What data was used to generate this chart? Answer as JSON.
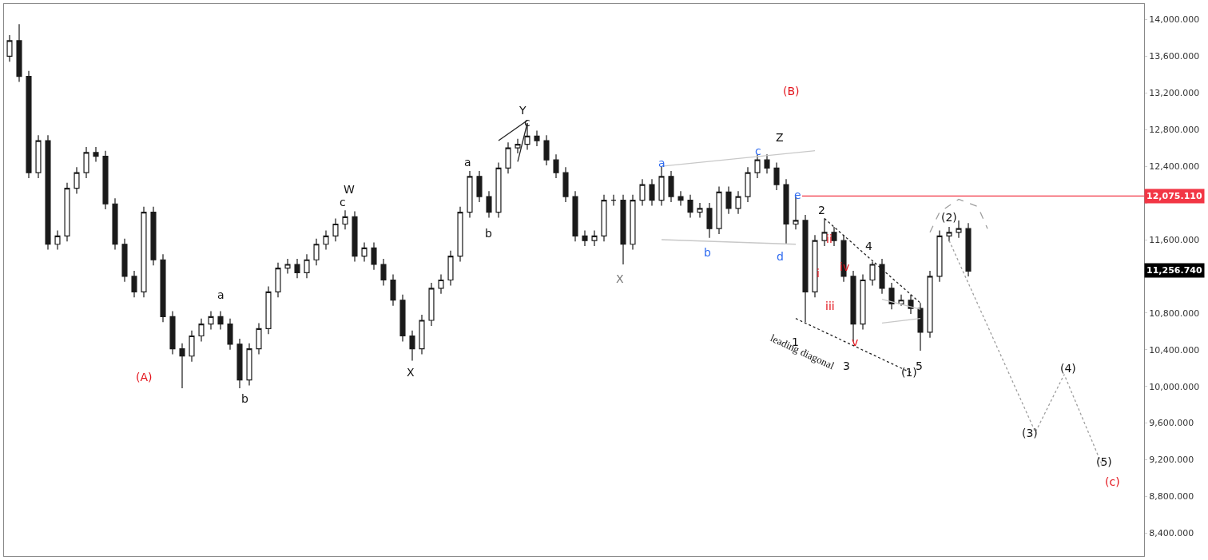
{
  "chart_data": {
    "type": "candlestick",
    "color": "#1a1a1a",
    "categories": [
      null,
      null,
      null,
      null,
      null,
      null,
      null,
      null,
      null,
      null,
      null,
      null,
      null,
      null,
      null,
      null,
      null,
      null,
      null,
      null,
      null,
      null,
      null,
      null,
      null,
      null,
      null,
      null,
      null,
      null,
      null,
      null,
      null,
      null,
      null,
      null,
      null,
      null,
      null,
      null,
      null,
      null,
      null,
      null,
      null,
      null,
      null,
      null,
      null,
      null,
      null,
      null,
      null,
      null,
      null,
      null,
      null,
      null,
      null,
      null,
      null,
      null,
      null,
      null,
      null,
      null,
      null,
      null,
      null,
      null,
      null,
      null,
      null,
      null,
      null,
      null,
      null,
      null,
      null,
      null,
      null,
      null,
      null,
      null,
      null,
      null,
      null,
      null,
      null,
      null,
      null,
      null,
      null,
      null,
      null,
      null,
      null,
      null,
      null,
      null,
      null,
      null,
      null,
      null,
      null,
      null,
      null,
      null,
      null,
      null,
      null,
      null,
      null,
      null,
      null,
      null,
      null,
      null,
      null,
      null
    ],
    "ohlc": [
      [
        13600,
        13830,
        13540,
        13770
      ],
      [
        13770,
        13950,
        13320,
        13380
      ],
      [
        13380,
        13440,
        12270,
        12330
      ],
      [
        12330,
        12740,
        12270,
        12680
      ],
      [
        12680,
        12740,
        11490,
        11550
      ],
      [
        11550,
        11700,
        11490,
        11640
      ],
      [
        11640,
        12220,
        11580,
        12160
      ],
      [
        12160,
        12390,
        12100,
        12330
      ],
      [
        12330,
        12610,
        12270,
        12550
      ],
      [
        12550,
        12610,
        12450,
        12510
      ],
      [
        12510,
        12570,
        11930,
        11990
      ],
      [
        11990,
        12050,
        11490,
        11550
      ],
      [
        11550,
        11610,
        11140,
        11200
      ],
      [
        11200,
        11260,
        10970,
        11030
      ],
      [
        11030,
        11960,
        10970,
        11900
      ],
      [
        11900,
        11960,
        11320,
        11380
      ],
      [
        11380,
        11440,
        10700,
        10760
      ],
      [
        10760,
        10820,
        10350,
        10410
      ],
      [
        10410,
        10470,
        9980,
        10330
      ],
      [
        10330,
        10610,
        10270,
        10550
      ],
      [
        10550,
        10740,
        10490,
        10680
      ],
      [
        10680,
        10820,
        10620,
        10760
      ],
      [
        10760,
        10820,
        10620,
        10680
      ],
      [
        10680,
        10740,
        10400,
        10460
      ],
      [
        10460,
        10520,
        9980,
        10070
      ],
      [
        10070,
        10470,
        10010,
        10410
      ],
      [
        10410,
        10690,
        10350,
        10630
      ],
      [
        10630,
        11090,
        10570,
        11030
      ],
      [
        11030,
        11350,
        10970,
        11290
      ],
      [
        11290,
        11390,
        11230,
        11330
      ],
      [
        11330,
        11390,
        11180,
        11240
      ],
      [
        11240,
        11440,
        11180,
        11380
      ],
      [
        11380,
        11610,
        11320,
        11550
      ],
      [
        11550,
        11700,
        11490,
        11640
      ],
      [
        11640,
        11830,
        11580,
        11770
      ],
      [
        11770,
        11920,
        11710,
        11850
      ],
      [
        11850,
        11910,
        11360,
        11420
      ],
      [
        11420,
        11570,
        11360,
        11510
      ],
      [
        11510,
        11570,
        11270,
        11330
      ],
      [
        11330,
        11390,
        11100,
        11160
      ],
      [
        11160,
        11220,
        10880,
        10940
      ],
      [
        10940,
        11000,
        10490,
        10550
      ],
      [
        10550,
        10610,
        10280,
        10410
      ],
      [
        10410,
        10780,
        10350,
        10720
      ],
      [
        10720,
        11130,
        10660,
        11070
      ],
      [
        11070,
        11220,
        11010,
        11160
      ],
      [
        11160,
        11480,
        11100,
        11420
      ],
      [
        11420,
        11960,
        11360,
        11900
      ],
      [
        11900,
        12350,
        11840,
        12290
      ],
      [
        12290,
        12350,
        12010,
        12070
      ],
      [
        12070,
        12130,
        11840,
        11900
      ],
      [
        11900,
        12440,
        11840,
        12380
      ],
      [
        12380,
        12660,
        12320,
        12600
      ],
      [
        12600,
        12700,
        12540,
        12640
      ],
      [
        12640,
        12870,
        12580,
        12730
      ],
      [
        12730,
        12790,
        12620,
        12680
      ],
      [
        12680,
        12740,
        12410,
        12470
      ],
      [
        12470,
        12530,
        12270,
        12330
      ],
      [
        12330,
        12390,
        12010,
        12070
      ],
      [
        12070,
        12130,
        11580,
        11640
      ],
      [
        11640,
        11700,
        11530,
        11590
      ],
      [
        11590,
        11700,
        11530,
        11640
      ],
      [
        11640,
        12090,
        11580,
        12030
      ],
      [
        12030,
        12090,
        11970,
        12030
      ],
      [
        12030,
        12090,
        11330,
        11550
      ],
      [
        11550,
        12090,
        11490,
        12030
      ],
      [
        12030,
        12260,
        11970,
        12200
      ],
      [
        12200,
        12260,
        11970,
        12030
      ],
      [
        12030,
        12400,
        11970,
        12290
      ],
      [
        12290,
        12350,
        12010,
        12070
      ],
      [
        12070,
        12130,
        11970,
        12030
      ],
      [
        12030,
        12090,
        11840,
        11900
      ],
      [
        11900,
        12000,
        11840,
        11940
      ],
      [
        11940,
        12000,
        11620,
        11720
      ],
      [
        11720,
        12180,
        11660,
        12120
      ],
      [
        12120,
        12180,
        11880,
        11940
      ],
      [
        11940,
        12130,
        11880,
        12070
      ],
      [
        12070,
        12390,
        12010,
        12330
      ],
      [
        12330,
        12530,
        12270,
        12470
      ],
      [
        12470,
        12530,
        12320,
        12380
      ],
      [
        12380,
        12440,
        12140,
        12200
      ],
      [
        12200,
        12260,
        11550,
        11770
      ],
      [
        11770,
        12070,
        11710,
        11810
      ],
      [
        11810,
        11870,
        10700,
        11030
      ],
      [
        11030,
        11650,
        10970,
        11590
      ],
      [
        11590,
        11830,
        11530,
        11680
      ],
      [
        11680,
        11740,
        11530,
        11590
      ],
      [
        11590,
        11650,
        11140,
        11200
      ],
      [
        11200,
        11260,
        10490,
        10680
      ],
      [
        10680,
        11220,
        10620,
        11160
      ],
      [
        11160,
        11360,
        11100,
        11330
      ],
      [
        11330,
        11390,
        11010,
        11070
      ],
      [
        11070,
        11130,
        10840,
        10900
      ],
      [
        10900,
        11000,
        10880,
        10940
      ],
      [
        10940,
        11000,
        10790,
        10850
      ],
      [
        10850,
        10910,
        10390,
        10590
      ],
      [
        10590,
        11260,
        10530,
        11200
      ],
      [
        11200,
        11700,
        11140,
        11640
      ],
      [
        11640,
        11740,
        11580,
        11680
      ],
      [
        11680,
        11810,
        11620,
        11720
      ],
      [
        11720,
        11780,
        11200,
        11256.74
      ],
      null,
      null,
      null,
      null,
      null,
      null,
      null,
      null,
      null,
      null,
      null,
      null,
      null,
      null,
      null,
      null,
      null,
      null,
      null
    ],
    "series": [
      {
        "type": "line",
        "color": "#9e9e9e",
        "line_style": "dotted",
        "values": [
          null,
          null,
          null,
          null,
          null,
          null,
          null,
          null,
          null,
          null,
          null,
          null,
          null,
          null,
          null,
          null,
          null,
          null,
          null,
          null,
          null,
          null,
          null,
          null,
          null,
          null,
          null,
          null,
          null,
          null,
          null,
          null,
          null,
          null,
          null,
          null,
          null,
          null,
          null,
          null,
          null,
          null,
          null,
          null,
          null,
          null,
          null,
          null,
          null,
          null,
          null,
          null,
          null,
          null,
          null,
          null,
          null,
          null,
          null,
          null,
          null,
          null,
          null,
          null,
          null,
          null,
          null,
          null,
          null,
          null,
          null,
          null,
          null,
          null,
          null,
          null,
          null,
          null,
          null,
          null,
          null,
          null,
          null,
          null,
          null,
          null,
          null,
          null,
          null,
          null,
          null,
          null,
          null,
          null,
          null,
          null,
          null,
          null,
          11590,
          null,
          null,
          null,
          null,
          null,
          null,
          null,
          null,
          9500,
          null,
          null,
          10130,
          null,
          null,
          null,
          9130,
          null,
          null,
          null,
          null,
          null
        ]
      },
      {
        "type": "line",
        "color": "#c8c8c8",
        "line_style": "solid",
        "values": [
          null,
          null,
          null,
          null,
          null,
          null,
          null,
          null,
          null,
          null,
          null,
          null,
          null,
          null,
          null,
          null,
          null,
          null,
          null,
          null,
          null,
          null,
          null,
          null,
          null,
          null,
          null,
          null,
          null,
          null,
          null,
          null,
          null,
          null,
          null,
          null,
          null,
          null,
          null,
          null,
          null,
          null,
          null,
          null,
          null,
          null,
          null,
          null,
          null,
          null,
          null,
          null,
          null,
          null,
          null,
          null,
          null,
          null,
          null,
          null,
          null,
          null,
          null,
          null,
          null,
          null,
          null,
          null,
          12400,
          null,
          null,
          null,
          null,
          null,
          null,
          null,
          null,
          null,
          null,
          null,
          null,
          null,
          null,
          null,
          12570,
          null,
          null,
          null,
          null,
          null,
          null,
          null,
          null,
          null,
          null,
          null,
          null,
          null,
          null,
          null,
          null,
          null,
          null,
          null,
          null,
          null,
          null,
          null,
          null,
          null,
          null,
          null,
          null,
          null,
          null,
          null,
          null,
          null,
          null,
          null
        ]
      },
      {
        "type": "line",
        "color": "#c8c8c8",
        "line_style": "solid",
        "values": [
          null,
          null,
          null,
          null,
          null,
          null,
          null,
          null,
          null,
          null,
          null,
          null,
          null,
          null,
          null,
          null,
          null,
          null,
          null,
          null,
          null,
          null,
          null,
          null,
          null,
          null,
          null,
          null,
          null,
          null,
          null,
          null,
          null,
          null,
          null,
          null,
          null,
          null,
          null,
          null,
          null,
          null,
          null,
          null,
          null,
          null,
          null,
          null,
          null,
          null,
          null,
          null,
          null,
          null,
          null,
          null,
          null,
          null,
          null,
          null,
          null,
          null,
          null,
          null,
          null,
          null,
          null,
          null,
          11600,
          null,
          null,
          null,
          null,
          null,
          null,
          null,
          null,
          null,
          null,
          null,
          null,
          null,
          11550,
          null,
          null,
          null,
          null,
          null,
          null,
          null,
          null,
          null,
          null,
          null,
          null,
          null,
          null,
          null,
          null,
          null,
          null,
          null,
          null,
          null,
          null,
          null,
          null,
          null,
          null,
          null,
          null,
          null,
          null,
          null,
          null,
          null,
          null,
          null,
          null,
          null
        ]
      },
      {
        "type": "line",
        "color": "#222222",
        "line_style": "dotted",
        "values": [
          null,
          null,
          null,
          null,
          null,
          null,
          null,
          null,
          null,
          null,
          null,
          null,
          null,
          null,
          null,
          null,
          null,
          null,
          null,
          null,
          null,
          null,
          null,
          null,
          null,
          null,
          null,
          null,
          null,
          null,
          null,
          null,
          null,
          null,
          null,
          null,
          null,
          null,
          null,
          null,
          null,
          null,
          null,
          null,
          null,
          null,
          null,
          null,
          null,
          null,
          null,
          null,
          null,
          null,
          null,
          null,
          null,
          null,
          null,
          null,
          null,
          null,
          null,
          null,
          null,
          null,
          null,
          null,
          null,
          null,
          null,
          null,
          null,
          null,
          null,
          null,
          null,
          null,
          null,
          null,
          null,
          null,
          null,
          null,
          null,
          11830,
          null,
          null,
          null,
          null,
          null,
          null,
          null,
          null,
          null,
          10910,
          null,
          null,
          null,
          null,
          null,
          null,
          null,
          null,
          null,
          null,
          null,
          null,
          null,
          null,
          null,
          null,
          null,
          null,
          null,
          null,
          null,
          null,
          null,
          null
        ]
      },
      {
        "type": "line",
        "color": "#222222",
        "line_style": "dotted",
        "values": [
          null,
          null,
          null,
          null,
          null,
          null,
          null,
          null,
          null,
          null,
          null,
          null,
          null,
          null,
          null,
          null,
          null,
          null,
          null,
          null,
          null,
          null,
          null,
          null,
          null,
          null,
          null,
          null,
          null,
          null,
          null,
          null,
          null,
          null,
          null,
          null,
          null,
          null,
          null,
          null,
          null,
          null,
          null,
          null,
          null,
          null,
          null,
          null,
          null,
          null,
          null,
          null,
          null,
          null,
          null,
          null,
          null,
          null,
          null,
          null,
          null,
          null,
          null,
          null,
          null,
          null,
          null,
          null,
          null,
          null,
          null,
          null,
          null,
          null,
          null,
          null,
          null,
          null,
          null,
          null,
          null,
          null,
          10740,
          null,
          null,
          null,
          null,
          null,
          null,
          null,
          null,
          null,
          null,
          null,
          10150,
          null,
          null,
          null,
          null,
          null,
          null,
          null,
          null,
          null,
          null,
          null,
          null,
          null,
          null,
          null,
          null,
          null,
          null,
          null,
          null,
          null,
          null,
          null,
          null,
          null
        ]
      },
      {
        "type": "line",
        "color": "#222222",
        "line_style": "solid",
        "values": [
          null,
          null,
          null,
          null,
          null,
          null,
          null,
          null,
          null,
          null,
          null,
          null,
          null,
          null,
          null,
          null,
          null,
          null,
          null,
          null,
          null,
          null,
          null,
          null,
          null,
          null,
          null,
          null,
          null,
          null,
          null,
          null,
          null,
          null,
          null,
          null,
          null,
          null,
          null,
          null,
          null,
          null,
          null,
          null,
          null,
          null,
          null,
          null,
          null,
          null,
          null,
          12680,
          null,
          null,
          12900,
          null,
          null,
          null,
          null,
          null,
          null,
          null,
          null,
          null,
          null,
          null,
          null,
          null,
          null,
          null,
          null,
          null,
          null,
          null,
          null,
          null,
          null,
          null,
          null,
          null,
          null,
          null,
          null,
          null,
          null,
          null,
          null,
          null,
          null,
          null,
          null,
          null,
          null,
          null,
          null,
          null,
          null,
          null,
          null,
          null,
          null,
          null,
          null,
          null,
          null,
          null,
          null,
          null,
          null,
          null,
          null,
          null,
          null,
          null,
          null,
          null,
          null,
          null,
          null,
          null
        ]
      },
      {
        "type": "line",
        "color": "#222222",
        "line_style": "solid",
        "values": [
          null,
          null,
          null,
          null,
          null,
          null,
          null,
          null,
          null,
          null,
          null,
          null,
          null,
          null,
          null,
          null,
          null,
          null,
          null,
          null,
          null,
          null,
          null,
          null,
          null,
          null,
          null,
          null,
          null,
          null,
          null,
          null,
          null,
          null,
          null,
          null,
          null,
          null,
          null,
          null,
          null,
          null,
          null,
          null,
          null,
          null,
          null,
          null,
          null,
          null,
          null,
          null,
          null,
          12450,
          12870,
          null,
          null,
          null,
          null,
          null,
          null,
          null,
          null,
          null,
          null,
          null,
          null,
          null,
          null,
          null,
          null,
          null,
          null,
          null,
          null,
          null,
          null,
          null,
          null,
          null,
          null,
          null,
          null,
          null,
          null,
          null,
          null,
          null,
          null,
          null,
          null,
          null,
          null,
          null,
          null,
          null,
          null,
          null,
          null,
          null,
          null,
          null,
          null,
          null,
          null,
          null,
          null,
          null,
          null,
          null,
          null,
          null,
          null,
          null,
          null,
          null,
          null,
          null,
          null,
          null
        ]
      },
      {
        "type": "line",
        "color": "#c8c8c8",
        "line_style": "solid",
        "values": [
          null,
          null,
          null,
          null,
          null,
          null,
          null,
          null,
          null,
          null,
          null,
          null,
          null,
          null,
          null,
          null,
          null,
          null,
          null,
          null,
          null,
          null,
          null,
          null,
          null,
          null,
          null,
          null,
          null,
          null,
          null,
          null,
          null,
          null,
          null,
          null,
          null,
          null,
          null,
          null,
          null,
          null,
          null,
          null,
          null,
          null,
          null,
          null,
          null,
          null,
          null,
          null,
          null,
          null,
          null,
          null,
          null,
          null,
          null,
          null,
          null,
          null,
          null,
          null,
          null,
          null,
          null,
          null,
          null,
          null,
          null,
          null,
          null,
          null,
          null,
          null,
          null,
          null,
          null,
          null,
          null,
          null,
          null,
          null,
          null,
          null,
          null,
          null,
          null,
          null,
          null,
          10950,
          null,
          null,
          null,
          10840,
          null,
          null,
          null,
          null,
          null,
          null,
          null,
          null,
          null,
          null,
          null,
          null,
          null,
          null,
          null,
          null,
          null,
          null,
          null,
          null,
          null,
          null,
          null,
          null
        ]
      },
      {
        "type": "line",
        "color": "#c8c8c8",
        "line_style": "solid",
        "values": [
          null,
          null,
          null,
          null,
          null,
          null,
          null,
          null,
          null,
          null,
          null,
          null,
          null,
          null,
          null,
          null,
          null,
          null,
          null,
          null,
          null,
          null,
          null,
          null,
          null,
          null,
          null,
          null,
          null,
          null,
          null,
          null,
          null,
          null,
          null,
          null,
          null,
          null,
          null,
          null,
          null,
          null,
          null,
          null,
          null,
          null,
          null,
          null,
          null,
          null,
          null,
          null,
          null,
          null,
          null,
          null,
          null,
          null,
          null,
          null,
          null,
          null,
          null,
          null,
          null,
          null,
          null,
          null,
          null,
          null,
          null,
          null,
          null,
          null,
          null,
          null,
          null,
          null,
          null,
          null,
          null,
          null,
          null,
          null,
          null,
          null,
          null,
          null,
          null,
          null,
          null,
          10690,
          null,
          null,
          null,
          10740,
          null,
          null,
          null,
          null,
          null,
          null,
          null,
          null,
          null,
          null,
          null,
          null,
          null,
          null,
          null,
          null,
          null,
          null,
          null,
          null,
          null,
          null,
          null,
          null
        ]
      },
      {
        "type": "line",
        "color": "#9e9e9e",
        "line_style": "dashed",
        "values": [
          null,
          null,
          null,
          null,
          null,
          null,
          null,
          null,
          null,
          null,
          null,
          null,
          null,
          null,
          null,
          null,
          null,
          null,
          null,
          null,
          null,
          null,
          null,
          null,
          null,
          null,
          null,
          null,
          null,
          null,
          null,
          null,
          null,
          null,
          null,
          null,
          null,
          null,
          null,
          null,
          null,
          null,
          null,
          null,
          null,
          null,
          null,
          null,
          null,
          null,
          null,
          null,
          null,
          null,
          null,
          null,
          null,
          null,
          null,
          null,
          null,
          null,
          null,
          null,
          null,
          null,
          null,
          null,
          null,
          null,
          null,
          null,
          null,
          null,
          null,
          null,
          null,
          null,
          null,
          null,
          null,
          null,
          null,
          null,
          null,
          null,
          null,
          null,
          null,
          null,
          null,
          null,
          null,
          null,
          null,
          null,
          11680,
          11900,
          null,
          12040,
          null,
          11960,
          11720,
          null,
          null,
          null,
          null,
          null,
          null,
          null,
          null,
          null,
          null,
          null,
          null,
          null,
          null,
          null,
          null,
          null
        ]
      }
    ],
    "ref_lines": [
      {
        "axis": "y",
        "value": 12075.11,
        "label": "12,075.110",
        "color": "#f23645",
        "line_style": "solid"
      }
    ],
    "annotations": [
      "(A)",
      "a",
      "b",
      "W",
      "c",
      "X",
      "a",
      "b",
      "Y",
      "c",
      "X",
      "a",
      "b",
      "c",
      "d",
      "e",
      "Z",
      "(B)",
      "1",
      "2",
      "3",
      "4",
      "5",
      "(1)",
      "(2)",
      "(3)",
      "(4)",
      "(5)",
      "(c)",
      "i",
      "ii",
      "iii",
      "iv",
      "v",
      "leading diagonal",
      "11,256.740"
    ],
    "ylim": [
      8150,
      14170
    ],
    "yticks": [
      {
        "value": 8400,
        "label": "8,400.000"
      },
      {
        "value": 8800,
        "label": "8,800.000"
      },
      {
        "value": 9200,
        "label": "9,200.000"
      },
      {
        "value": 9600,
        "label": "9,600.000"
      },
      {
        "value": 10000,
        "label": "10,000.000"
      },
      {
        "value": 10400,
        "label": "10,400.000"
      },
      {
        "value": 10800,
        "label": "10,800.000"
      },
      {
        "value": 11200,
        "label": null
      },
      {
        "value": 11600,
        "label": "11,600.000"
      },
      {
        "value": 12000,
        "label": null
      },
      {
        "value": 12400,
        "label": "12,400.000"
      },
      {
        "value": 12800,
        "label": "12,800.000"
      },
      {
        "value": 13200,
        "label": "13,200.000"
      },
      {
        "value": 13600,
        "label": "13,600.000"
      },
      {
        "value": 14000,
        "label": "14,000.000"
      }
    ],
    "tick_labels": "y",
    "grid": false
  }
}
